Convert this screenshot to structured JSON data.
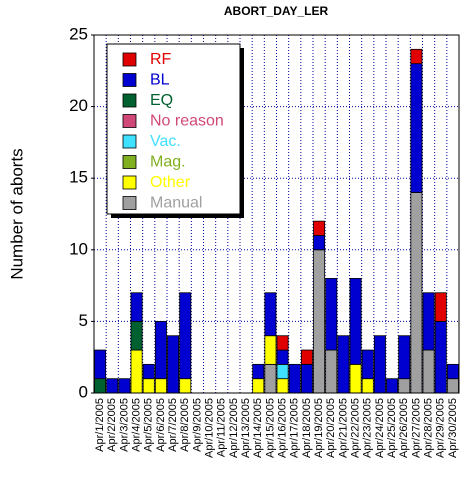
{
  "chart_data": {
    "type": "stacked_bar",
    "title": "ABORT_DAY_LER",
    "y_label": "Number of aborts",
    "categories": [
      "Apr/1/2005",
      "Apr/2/2005",
      "Apr/3/2005",
      "Apr/4/2005",
      "Apr/5/2005",
      "Apr/6/2005",
      "Apr/7/2005",
      "Apr/8/2005",
      "Apr/9/2005",
      "Apr/10/2005",
      "Apr/11/2005",
      "Apr/12/2005",
      "Apr/13/2005",
      "Apr/14/2005",
      "Apr/15/2005",
      "Apr/16/2005",
      "Apr/17/2005",
      "Apr/18/2005",
      "Apr/19/2005",
      "Apr/20/2005",
      "Apr/21/2005",
      "Apr/22/2005",
      "Apr/23/2005",
      "Apr/24/2005",
      "Apr/25/2005",
      "Apr/26/2005",
      "Apr/27/2005",
      "Apr/28/2005",
      "Apr/29/2005",
      "Apr/30/2005"
    ],
    "series": [
      {
        "name": "RF",
        "color": "#e00000",
        "values": [
          0,
          0,
          0,
          0,
          0,
          0,
          0,
          0,
          0,
          0,
          0,
          0,
          0,
          0,
          0,
          1,
          0,
          1,
          1,
          0,
          0,
          0,
          0,
          0,
          0,
          0,
          1,
          0,
          2,
          0
        ]
      },
      {
        "name": "BL",
        "color": "#0000d0",
        "values": [
          2,
          1,
          1,
          2,
          1,
          4,
          4,
          6,
          0,
          0,
          0,
          0,
          0,
          1,
          3,
          1,
          2,
          2,
          1,
          5,
          4,
          6,
          2,
          4,
          1,
          3,
          9,
          4,
          5,
          1
        ]
      },
      {
        "name": "EQ",
        "color": "#006030",
        "values": [
          1,
          0,
          0,
          2,
          0,
          0,
          0,
          0,
          0,
          0,
          0,
          0,
          0,
          0,
          0,
          0,
          0,
          0,
          0,
          0,
          0,
          0,
          0,
          0,
          0,
          0,
          0,
          0,
          0,
          0
        ]
      },
      {
        "name": "No reason",
        "color": "#d04878",
        "values": [
          0,
          0,
          0,
          0,
          0,
          0,
          0,
          0,
          0,
          0,
          0,
          0,
          0,
          0,
          0,
          0,
          0,
          0,
          0,
          0,
          0,
          0,
          0,
          0,
          0,
          0,
          0,
          0,
          0,
          0
        ]
      },
      {
        "name": "Vac.",
        "color": "#40e0ff",
        "values": [
          0,
          0,
          0,
          0,
          0,
          0,
          0,
          0,
          0,
          0,
          0,
          0,
          0,
          0,
          0,
          1,
          0,
          0,
          0,
          0,
          0,
          0,
          0,
          0,
          0,
          0,
          0,
          0,
          0,
          0
        ]
      },
      {
        "name": "Mag.",
        "color": "#80b020",
        "values": [
          0,
          0,
          0,
          0,
          0,
          0,
          0,
          0,
          0,
          0,
          0,
          0,
          0,
          0,
          0,
          0,
          0,
          0,
          0,
          0,
          0,
          0,
          0,
          0,
          0,
          0,
          0,
          0,
          0,
          0
        ]
      },
      {
        "name": "Other",
        "color": "#ffff00",
        "values": [
          0,
          0,
          0,
          3,
          1,
          1,
          0,
          1,
          0,
          0,
          0,
          0,
          0,
          1,
          2,
          1,
          0,
          0,
          0,
          0,
          0,
          2,
          1,
          0,
          0,
          0,
          0,
          0,
          0,
          0
        ]
      },
      {
        "name": "Manual",
        "color": "#a0a0a0",
        "values": [
          0,
          0,
          0,
          0,
          0,
          0,
          0,
          0,
          0,
          0,
          0,
          0,
          0,
          0,
          2,
          0,
          0,
          0,
          10,
          3,
          0,
          0,
          0,
          0,
          0,
          1,
          14,
          3,
          0,
          1
        ]
      }
    ],
    "ylim": [
      0,
      25
    ],
    "yticks": [
      0,
      5,
      10,
      15,
      20,
      25
    ],
    "grid": true,
    "legend": "upper left"
  }
}
